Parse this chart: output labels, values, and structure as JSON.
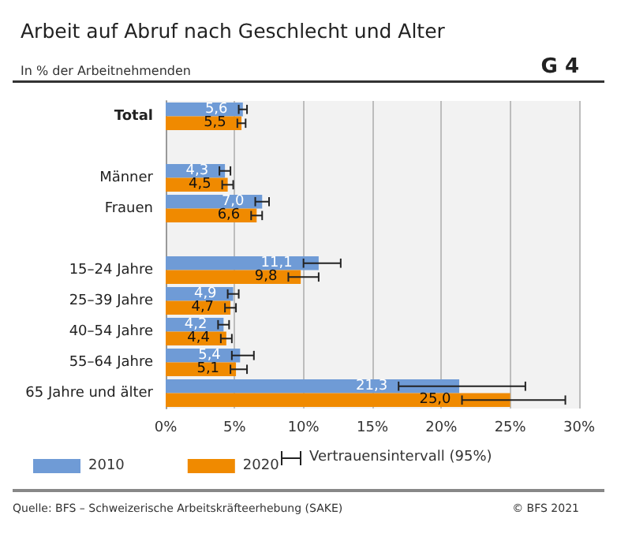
{
  "chart_data": {
    "type": "bar",
    "orientation": "horizontal",
    "title": "Arbeit auf Abruf nach Geschlecht und Alter",
    "subtitle": "In % der Arbeitnehmenden",
    "categories": [
      "Total",
      null,
      "Männer",
      "Frauen",
      null,
      "15–24 Jahre",
      "25–39 Jahre",
      "40–54 Jahre",
      "55–64 Jahre",
      "65 Jahre und älter"
    ],
    "series": [
      {
        "name": "2010",
        "color": "#6f9bd6",
        "values": [
          5.6,
          null,
          4.3,
          7.0,
          null,
          11.1,
          4.9,
          4.2,
          5.4,
          21.3
        ],
        "value_labels": [
          "5,6",
          null,
          "4,3",
          "7,0",
          null,
          "11,1",
          "4,9",
          "4,2",
          "5,4",
          "21,3"
        ],
        "errors": [
          [
            5.3,
            5.9
          ],
          null,
          [
            3.9,
            4.7
          ],
          [
            6.5,
            7.5
          ],
          null,
          [
            10.0,
            12.7
          ],
          [
            4.5,
            5.3
          ],
          [
            3.8,
            4.6
          ],
          [
            4.8,
            6.4
          ],
          [
            16.9,
            26.1
          ]
        ]
      },
      {
        "name": "2020",
        "color": "#f08a00",
        "values": [
          5.5,
          null,
          4.5,
          6.6,
          null,
          9.8,
          4.7,
          4.4,
          5.1,
          25.0
        ],
        "value_labels": [
          "5,5",
          null,
          "4,5",
          "6,6",
          null,
          "9,8",
          "4,7",
          "4,4",
          "5,1",
          "25,0"
        ],
        "errors": [
          [
            5.2,
            5.8
          ],
          null,
          [
            4.1,
            4.9
          ],
          [
            6.2,
            7.0
          ],
          null,
          [
            8.9,
            11.1
          ],
          [
            4.3,
            5.1
          ],
          [
            4.0,
            4.8
          ],
          [
            4.7,
            5.9
          ],
          [
            21.5,
            29.0
          ]
        ]
      }
    ],
    "xlim": [
      0,
      30
    ],
    "xticks": [
      {
        "value": 0,
        "label": "0%"
      },
      {
        "value": 5,
        "label": "5%"
      },
      {
        "value": 10,
        "label": "10%"
      },
      {
        "value": 15,
        "label": "15%"
      },
      {
        "value": 20,
        "label": "20%"
      },
      {
        "value": 25,
        "label": "25%"
      },
      {
        "value": 30,
        "label": "30%"
      }
    ],
    "grid": "x",
    "legend": "bottom",
    "annotations": [
      "G 4",
      "Vertrauensintervall (95%)",
      "Quelle: BFS – Schweizerische Arbeitskräfteerhebung (SAKE)",
      "© BFS 2021"
    ]
  }
}
